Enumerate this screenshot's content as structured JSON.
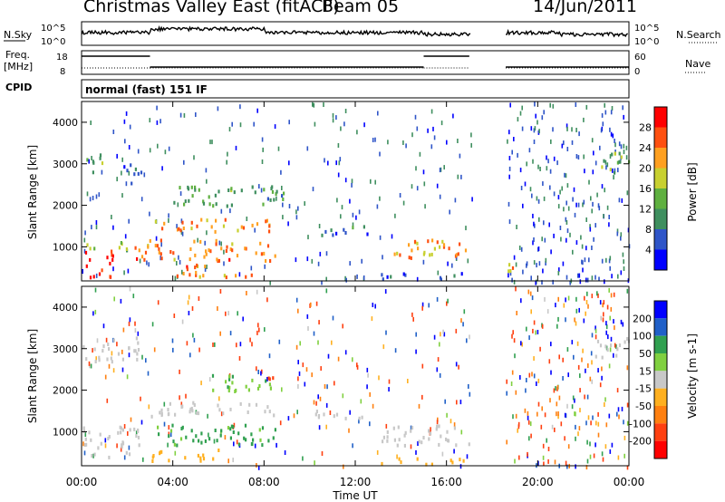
{
  "header": {
    "radar": "Christmas Valley East (fitACF)",
    "beam": "Beam 05",
    "date": "14/Jun/2011"
  },
  "top_panels": {
    "nsky_label": "N.Sky",
    "nsky_ticks": [
      "10^5",
      "10^0"
    ],
    "nsearch_label": "N.Search",
    "freq_label": "Freq.",
    "freq_unit": "[MHz]",
    "freq_ticks": [
      "18",
      "8"
    ],
    "nave_label": "Nave",
    "nave_ticks": [
      "60",
      "0"
    ],
    "cpid_label": "CPID",
    "cpid_value": "normal (fast) 151 IF"
  },
  "colors": {
    "power": [
      "#0000ff",
      "#2f55c8",
      "#3f8f5f",
      "#5fb040",
      "#c8d030",
      "#ffa020",
      "#ff5010",
      "#ff0000"
    ],
    "velocity": [
      "#0000ff",
      "#2060c8",
      "#30a050",
      "#80d040",
      "#c8c8c8",
      "#ffb020",
      "#ff8010",
      "#ff4010",
      "#ff0000"
    ],
    "ground_scatter": "#c8c8c8"
  },
  "chart_data": [
    {
      "type": "heatmap",
      "name": "power",
      "ylabel": "Slant Range [km]",
      "xlabel": "",
      "x_ticks": [
        "00:00",
        "04:00",
        "08:00",
        "12:00",
        "16:00",
        "20:00",
        "00:00"
      ],
      "xlim": [
        0,
        24
      ],
      "ylim": [
        180,
        4500
      ],
      "y_ticks": [
        1000,
        2000,
        3000,
        4000
      ],
      "colorbar": {
        "label": "Power [dB]",
        "ticks": [
          4,
          8,
          12,
          16,
          20,
          24,
          28
        ],
        "range": [
          0,
          32
        ]
      },
      "data_gap_hours": [
        17.1,
        18.6
      ],
      "regions": [
        {
          "x": [
            0.0,
            1.4
          ],
          "y": [
            300,
            950
          ],
          "value": 30
        },
        {
          "x": [
            0.0,
            2.0
          ],
          "y": [
            950,
            1200
          ],
          "value": 14
        },
        {
          "x": [
            0.0,
            0.9
          ],
          "y": [
            2800,
            3250
          ],
          "value": 12
        },
        {
          "x": [
            1.8,
            2.6
          ],
          "y": [
            2500,
            3100
          ],
          "value": 6
        },
        {
          "x": [
            2.3,
            8.5
          ],
          "y": [
            700,
            1200
          ],
          "value": 24
        },
        {
          "x": [
            3.0,
            8.5
          ],
          "y": [
            1400,
            1700
          ],
          "value": 22
        },
        {
          "x": [
            4.0,
            7.5
          ],
          "y": [
            300,
            600
          ],
          "value": 24
        },
        {
          "x": [
            4.0,
            9.0
          ],
          "y": [
            2000,
            2500
          ],
          "value": 12
        },
        {
          "x": [
            10.0,
            12.5
          ],
          "y": [
            1300,
            1550
          ],
          "value": 8
        },
        {
          "x": [
            13.5,
            17.0
          ],
          "y": [
            700,
            1200
          ],
          "value": 22
        },
        {
          "x": [
            13.0,
            17.0
          ],
          "y": [
            250,
            400
          ],
          "value": 6
        },
        {
          "x": [
            18.6,
            19.2
          ],
          "y": [
            300,
            700
          ],
          "value": 22
        },
        {
          "x": [
            22.5,
            24.0
          ],
          "y": [
            2800,
            3300
          ],
          "value": 14
        }
      ]
    },
    {
      "type": "heatmap",
      "name": "velocity",
      "ylabel": "Slant Range [km]",
      "xlabel": "Time UT",
      "x_ticks": [
        "00:00",
        "04:00",
        "08:00",
        "12:00",
        "16:00",
        "20:00",
        "00:00"
      ],
      "xlim": [
        0,
        24
      ],
      "ylim": [
        180,
        4500
      ],
      "y_ticks": [
        1000,
        2000,
        3000,
        4000
      ],
      "colorbar": {
        "label": "Velocity [m s-1]",
        "ticks": [
          200,
          100,
          50,
          15,
          -15,
          -50,
          -100,
          -200
        ],
        "range": [
          -250,
          250
        ]
      },
      "data_gap_hours": [
        17.1,
        18.6
      ],
      "regions": [
        {
          "x": [
            0.0,
            2.5
          ],
          "y": [
            400,
            1200
          ],
          "value": 0,
          "ground_scatter": true
        },
        {
          "x": [
            0.0,
            2.5
          ],
          "y": [
            2700,
            3300
          ],
          "value": 0,
          "ground_scatter": true
        },
        {
          "x": [
            3.0,
            8.5
          ],
          "y": [
            1400,
            1750
          ],
          "value": 0,
          "ground_scatter": true
        },
        {
          "x": [
            3.0,
            8.5
          ],
          "y": [
            700,
            1200
          ],
          "value": 40
        },
        {
          "x": [
            3.0,
            6.0
          ],
          "y": [
            300,
            600
          ],
          "value": -50
        },
        {
          "x": [
            5.5,
            8.5
          ],
          "y": [
            2000,
            2400
          ],
          "value": 30
        },
        {
          "x": [
            8.0,
            8.5
          ],
          "y": [
            2300,
            2600
          ],
          "value": -200
        },
        {
          "x": [
            10.0,
            12.5
          ],
          "y": [
            1300,
            1550
          ],
          "value": 0,
          "ground_scatter": true
        },
        {
          "x": [
            13.0,
            17.0
          ],
          "y": [
            700,
            1200
          ],
          "value": 0,
          "ground_scatter": true
        },
        {
          "x": [
            13.0,
            17.0
          ],
          "y": [
            250,
            400
          ],
          "value": -50
        },
        {
          "x": [
            22.5,
            24.0
          ],
          "y": [
            2800,
            3300
          ],
          "value": 0,
          "ground_scatter": true
        }
      ]
    }
  ],
  "freq_series": {
    "segments": [
      {
        "x": [
          0.0,
          3.0
        ],
        "value": 18
      },
      {
        "x": [
          3.0,
          15.0
        ],
        "value": 12
      },
      {
        "x": [
          15.0,
          17.0
        ],
        "value": 18
      },
      {
        "x": [
          18.6,
          24.0
        ],
        "value": 12
      }
    ]
  }
}
